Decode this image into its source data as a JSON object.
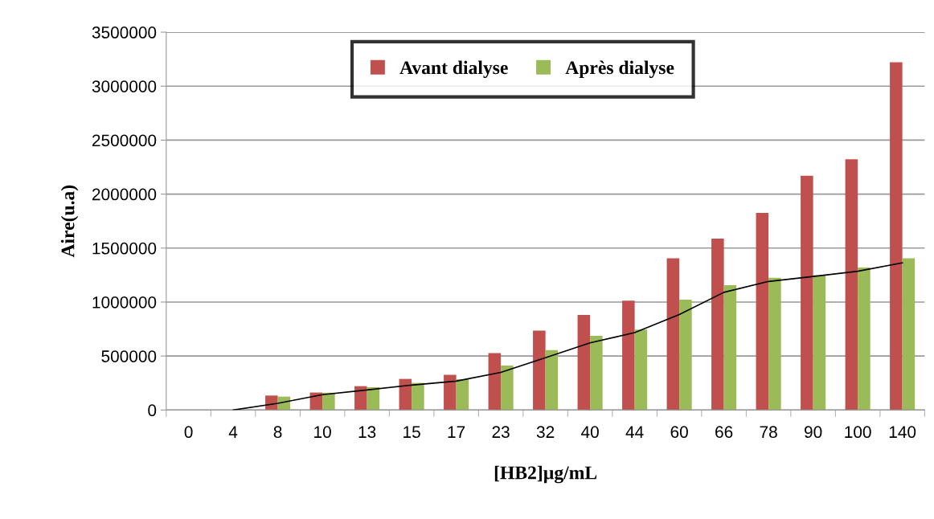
{
  "chart_data": {
    "type": "bar",
    "xlabel": "[HB2]µg/mL",
    "ylabel": "Aire(u.a)",
    "categories": [
      "0",
      "4",
      "8",
      "10",
      "13",
      "15",
      "17",
      "23",
      "32",
      "40",
      "44",
      "60",
      "66",
      "78",
      "90",
      "100",
      "140"
    ],
    "series": [
      {
        "name": "Avant dialyse",
        "color": "#c0504d",
        "values": [
          0,
          0,
          134000,
          162000,
          221000,
          288000,
          326000,
          527000,
          735000,
          881000,
          1013000,
          1406000,
          1587000,
          1826000,
          2171000,
          2323000,
          3222000
        ]
      },
      {
        "name": "Après dialyse",
        "color": "#9bbb59",
        "values": [
          0,
          0,
          124000,
          160000,
          211000,
          251000,
          285000,
          412000,
          556000,
          688000,
          745000,
          1023000,
          1157000,
          1224000,
          1250000,
          1319000,
          1406000
        ]
      },
      {
        "type": "line",
        "color": "#000000",
        "values": [
          null,
          0,
          62000,
          142000,
          186000,
          231000,
          268000,
          349000,
          484000,
          622000,
          717000,
          884000,
          1090000,
          1191000,
          1237000,
          1285000,
          1363000
        ]
      }
    ],
    "ylim": [
      0,
      3500000
    ],
    "yticks": [
      0,
      500000,
      1000000,
      1500000,
      2000000,
      2500000,
      3000000,
      3500000
    ],
    "grid": "y",
    "legend": "top",
    "marker": "none"
  }
}
